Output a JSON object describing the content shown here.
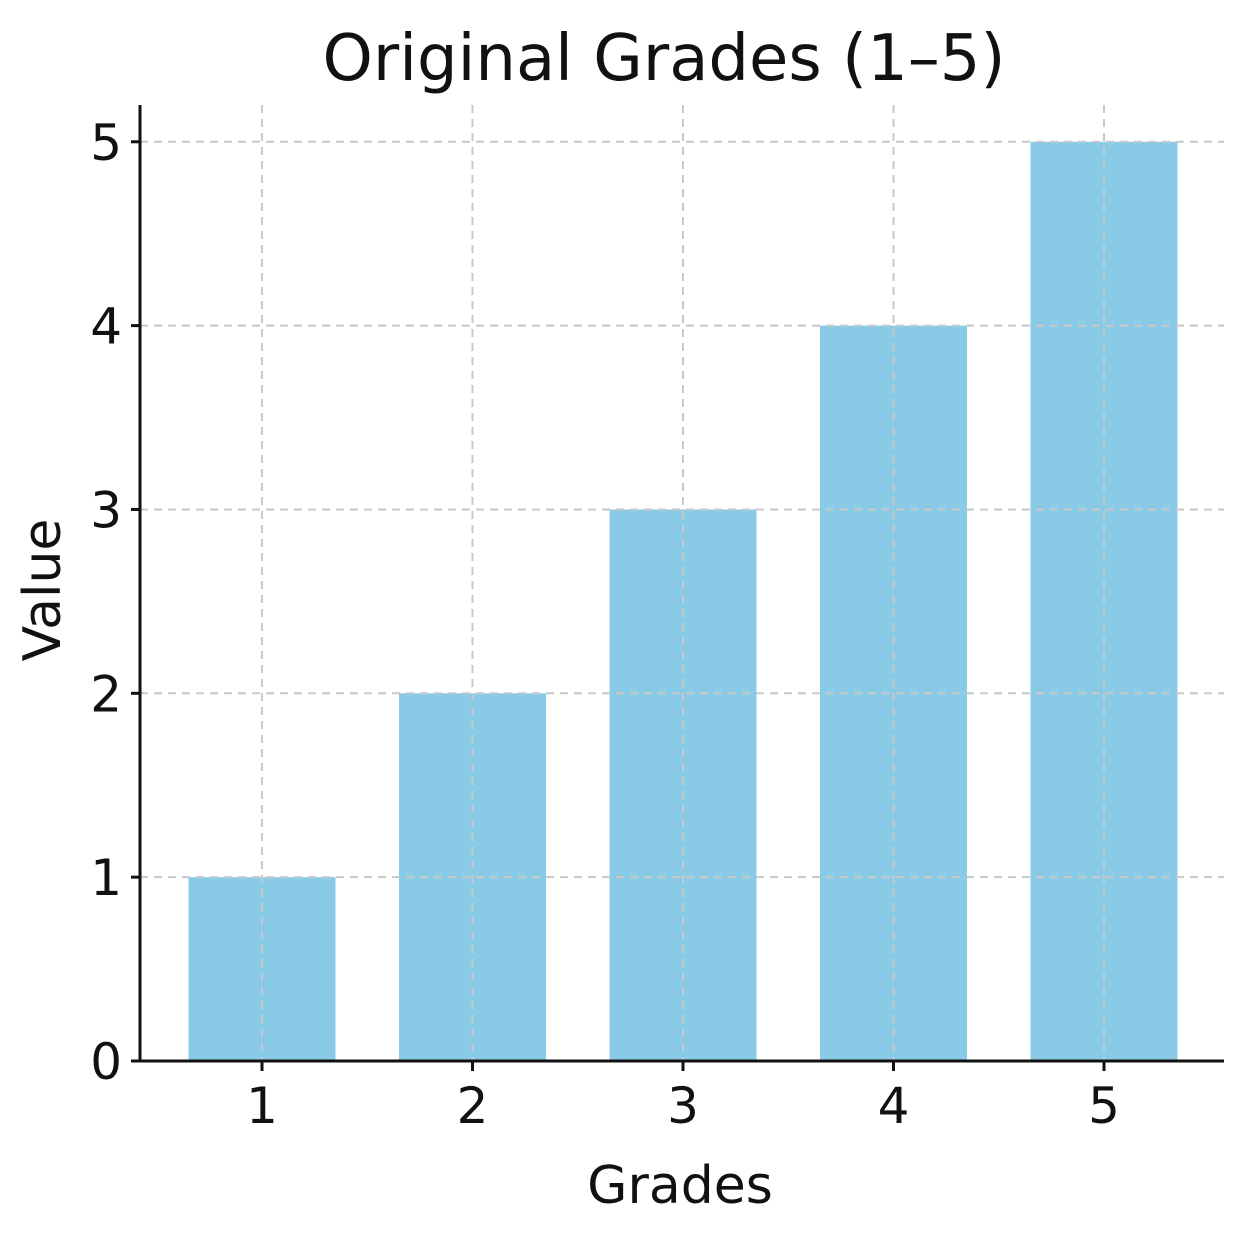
{
  "chart_data": {
    "type": "bar",
    "title": "Original Grades (1–5)",
    "xlabel": "Grades",
    "ylabel": "Value",
    "categories": [
      "1",
      "2",
      "3",
      "4",
      "5"
    ],
    "values": [
      1,
      2,
      3,
      4,
      5
    ],
    "ylim": [
      0,
      5.2
    ],
    "yticks": [
      "0",
      "1",
      "2",
      "3",
      "4",
      "5"
    ],
    "grid": true,
    "bar_color": "#89cbe7"
  }
}
